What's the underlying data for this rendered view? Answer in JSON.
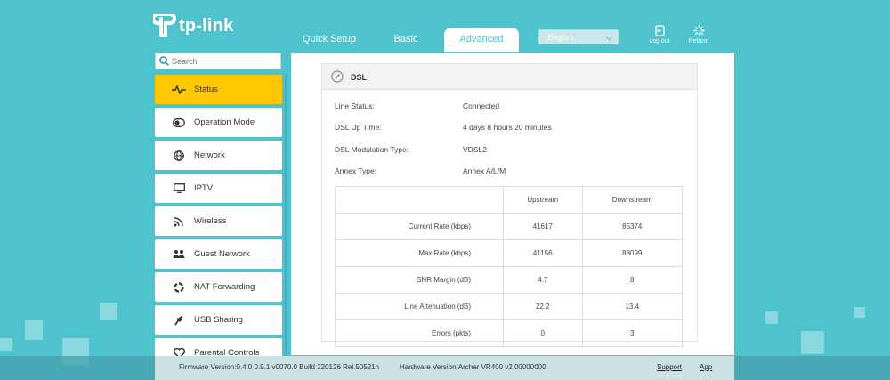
{
  "brand": {
    "logo_text": "tp-link"
  },
  "tabs": [
    {
      "label": "Quick Setup"
    },
    {
      "label": "Basic"
    },
    {
      "label": "Advanced",
      "active": true
    }
  ],
  "language": {
    "selected": "English"
  },
  "header_buttons": {
    "logout": "Log out",
    "reboot": "Reboot"
  },
  "search": {
    "placeholder": "Search"
  },
  "sidebar": {
    "items": [
      {
        "label": "Status",
        "icon": "pulse-icon",
        "active": true
      },
      {
        "label": "Operation Mode",
        "icon": "toggle-icon"
      },
      {
        "label": "Network",
        "icon": "globe-icon"
      },
      {
        "label": "IPTV",
        "icon": "monitor-icon"
      },
      {
        "label": "Wireless",
        "icon": "wifi-icon"
      },
      {
        "label": "Guest Network",
        "icon": "guests-icon"
      },
      {
        "label": "NAT Forwarding",
        "icon": "nat-icon"
      },
      {
        "label": "USB Sharing",
        "icon": "usb-icon"
      },
      {
        "label": "Parental Controls",
        "icon": "heart-icon"
      }
    ]
  },
  "panel": {
    "title": "DSL",
    "fields": [
      {
        "label": "Line Status:",
        "value": "Connected"
      },
      {
        "label": "DSL Up Time:",
        "value": "4 days 8 hours 20 minutes"
      },
      {
        "label": "DSL Modulation Type:",
        "value": "VDSL2"
      },
      {
        "label": "Annex Type:",
        "value": "Annex A/L/M"
      }
    ],
    "table": {
      "headers": [
        "",
        "Upstream",
        "Downstream"
      ],
      "rows": [
        {
          "label": "Current Rate (kbps)",
          "up": "41617",
          "down": "85374"
        },
        {
          "label": "Max Rate (kbps)",
          "up": "41156",
          "down": "88099"
        },
        {
          "label": "SNR Margin (dB)",
          "up": "4.7",
          "down": "8"
        },
        {
          "label": "Line Attenuation (dB)",
          "up": "22.2",
          "down": "13.4"
        },
        {
          "label": "Errors (pkts)",
          "up": "0",
          "down": "3"
        }
      ]
    }
  },
  "footer": {
    "firmware": "Firmware Version:0.4.0 0.9.1 v0070.0 Build 220126 Rel.50521n",
    "hardware": "Hardware Version:Archer VR400 v2 00000000",
    "support": "Support",
    "app": "App"
  },
  "colors": {
    "background": "#4ec3cd",
    "accent": "#ffc800",
    "tab_active_text": "#4ec3cd"
  }
}
